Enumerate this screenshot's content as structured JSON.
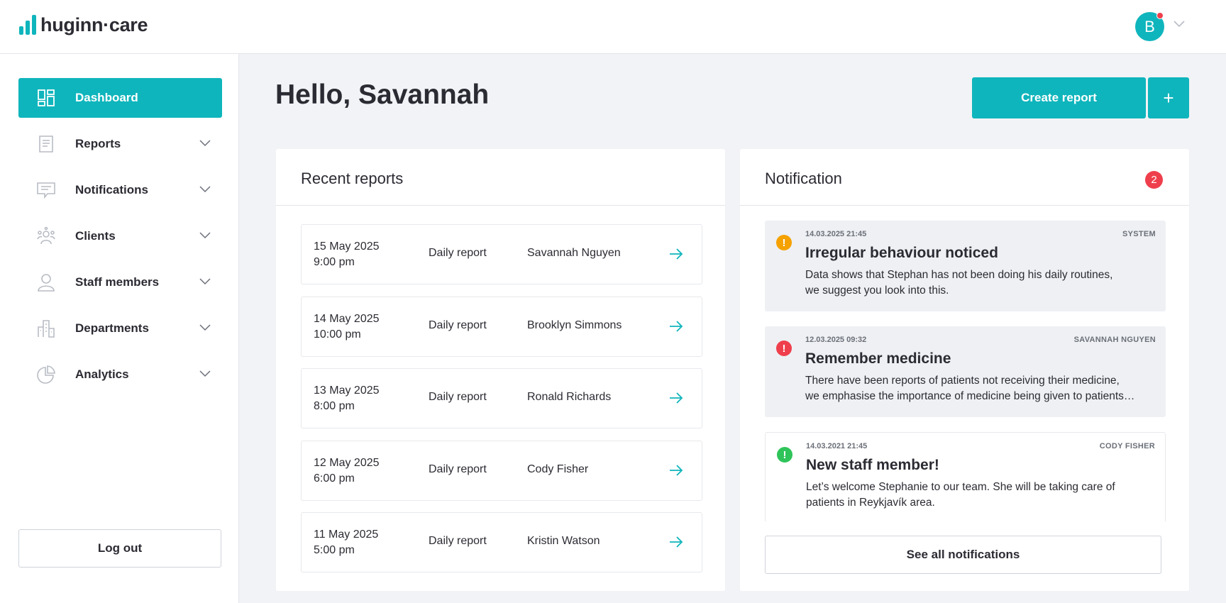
{
  "brand": {
    "logo_text": "huginn·care",
    "accent": "#0fb5bc",
    "alert": "#ef3f4c"
  },
  "user": {
    "avatar_initial": "B"
  },
  "sidebar": {
    "items": [
      {
        "label": "Dashboard",
        "icon": "dashboard-icon",
        "active": true
      },
      {
        "label": "Reports",
        "icon": "reports-icon"
      },
      {
        "label": "Notifications",
        "icon": "notifications-icon"
      },
      {
        "label": "Clients",
        "icon": "clients-icon"
      },
      {
        "label": "Staff members",
        "icon": "staff-icon"
      },
      {
        "label": "Departments",
        "icon": "departments-icon"
      },
      {
        "label": "Analytics",
        "icon": "analytics-icon"
      }
    ],
    "logout_label": "Log out"
  },
  "main": {
    "greeting": "Hello, Savannah",
    "create_report_label": "Create report",
    "plus_label": "+"
  },
  "recent_reports": {
    "title": "Recent reports",
    "rows": [
      {
        "date": "15 May 2025",
        "time": "9:00 pm",
        "type": "Daily report",
        "name": "Savannah Nguyen"
      },
      {
        "date": "14 May 2025",
        "time": "10:00 pm",
        "type": "Daily report",
        "name": "Brooklyn Simmons"
      },
      {
        "date": "13 May 2025",
        "time": "8:00 pm",
        "type": "Daily report",
        "name": "Ronald Richards"
      },
      {
        "date": "12 May 2025",
        "time": "6:00 pm",
        "type": "Daily report",
        "name": "Cody Fisher"
      },
      {
        "date": "11 May 2025",
        "time": "5:00 pm",
        "type": "Daily report",
        "name": "Kristin Watson"
      }
    ]
  },
  "notifications": {
    "title": "Notification",
    "count": "2",
    "items": [
      {
        "time": "14.03.2025 21:45",
        "source": "SYSTEM",
        "title": "Irregular behaviour noticed",
        "line1": "Data shows that Stephan has not been doing his daily routines,",
        "line2": "we suggest you look into this.",
        "severity_color": "#f5a100",
        "icon_glyph": "!",
        "read": false
      },
      {
        "time": "12.03.2025 09:32",
        "source": "SAVANNAH NGUYEN",
        "title": "Remember medicine",
        "line1": "There have been reports of patients not receiving their medicine,",
        "line2": "we emphasise the importance of medicine being given to patients…",
        "severity_color": "#ef3f4c",
        "icon_glyph": "!",
        "read": false
      },
      {
        "time": "14.03.2021 21:45",
        "source": "CODY FISHER",
        "title": "New staff member!",
        "line1": "Let’s welcome Stephanie to our team. She will be taking care of",
        "line2": "patients in Reykjavík area.",
        "severity_color": "#2fc45a",
        "icon_glyph": "!",
        "read": true
      }
    ],
    "see_all_label": "See all notifications"
  }
}
